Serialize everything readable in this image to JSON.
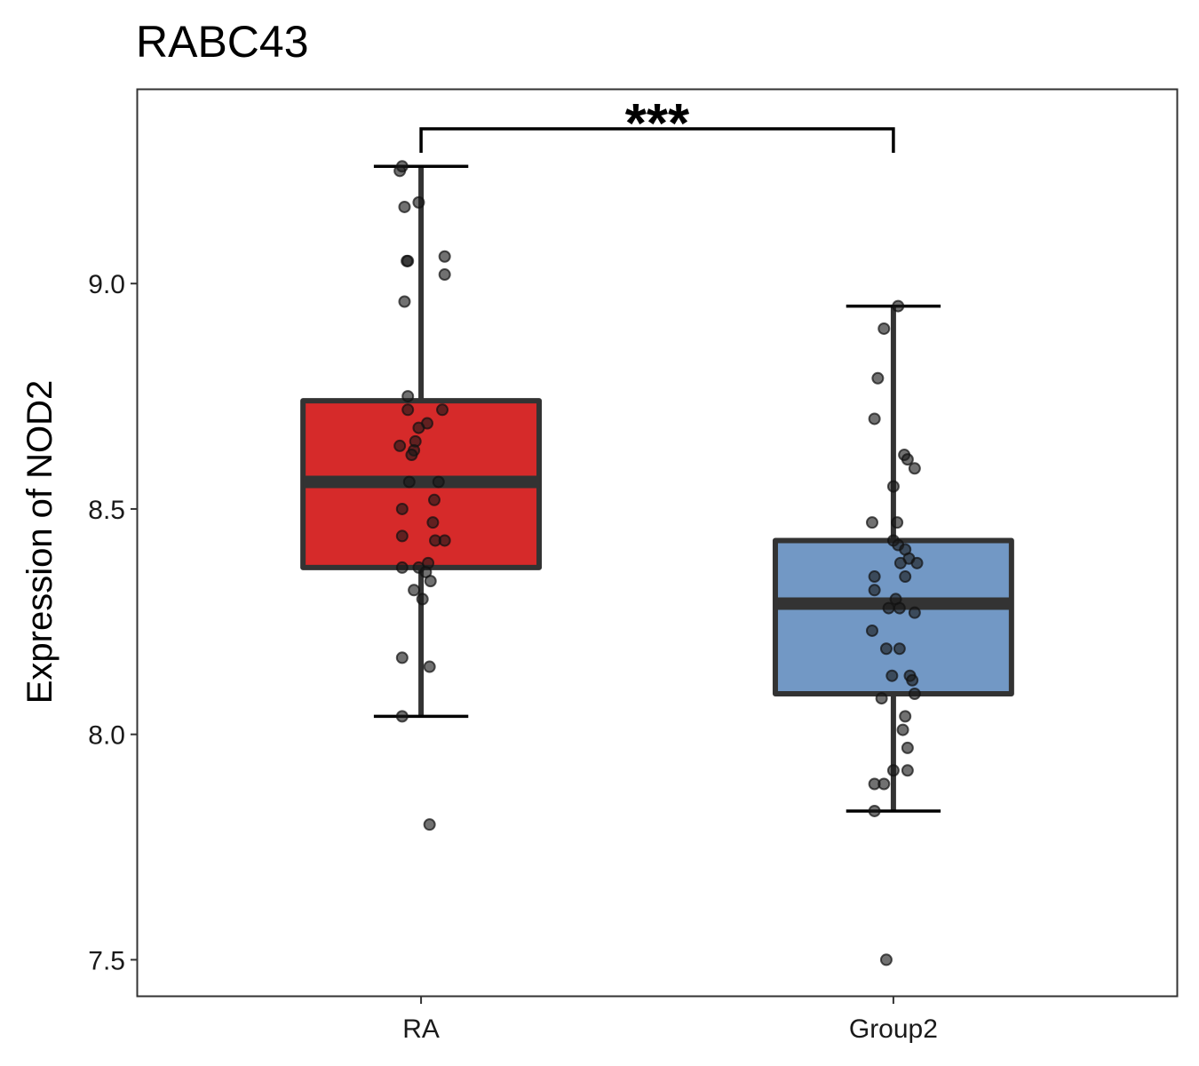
{
  "chart_data": {
    "type": "box",
    "title": "RABC43",
    "xlabel": "",
    "ylabel": "Expression of NOD2",
    "ylim": [
      7.42,
      9.43
    ],
    "yticks": [
      7.5,
      8.0,
      8.5,
      9.0
    ],
    "ytick_labels": [
      "7.5",
      "8.0",
      "8.5",
      "9.0"
    ],
    "categories": [
      "RA",
      "Group2"
    ],
    "grid": false,
    "colors": {
      "RA": "#D62A2A",
      "Group2": "#7298C5",
      "outline": "#333333",
      "points": "#1a1a1a"
    },
    "significance": {
      "label": "***",
      "between": [
        "RA",
        "Group2"
      ]
    },
    "boxes": [
      {
        "name": "RA",
        "whisker_low": 8.04,
        "q1": 8.37,
        "median": 8.56,
        "q3": 8.74,
        "whisker_high": 9.26,
        "points": [
          {
            "x": -0.04,
            "y": 9.26
          },
          {
            "x": -0.045,
            "y": 9.25
          },
          {
            "x": -0.035,
            "y": 9.17
          },
          {
            "x": -0.005,
            "y": 9.18
          },
          {
            "x": -0.03,
            "y": 9.05
          },
          {
            "x": -0.028,
            "y": 9.05
          },
          {
            "x": 0.05,
            "y": 9.06
          },
          {
            "x": 0.05,
            "y": 9.02
          },
          {
            "x": -0.035,
            "y": 8.96
          },
          {
            "x": -0.028,
            "y": 8.75
          },
          {
            "x": -0.028,
            "y": 8.72
          },
          {
            "x": 0.045,
            "y": 8.72
          },
          {
            "x": 0.013,
            "y": 8.69
          },
          {
            "x": -0.005,
            "y": 8.68
          },
          {
            "x": -0.012,
            "y": 8.65
          },
          {
            "x": -0.045,
            "y": 8.64
          },
          {
            "x": -0.015,
            "y": 8.63
          },
          {
            "x": -0.02,
            "y": 8.62
          },
          {
            "x": -0.025,
            "y": 8.56
          },
          {
            "x": 0.037,
            "y": 8.56
          },
          {
            "x": 0.028,
            "y": 8.52
          },
          {
            "x": -0.04,
            "y": 8.5
          },
          {
            "x": 0.025,
            "y": 8.47
          },
          {
            "x": -0.04,
            "y": 8.44
          },
          {
            "x": 0.03,
            "y": 8.43
          },
          {
            "x": 0.05,
            "y": 8.43
          },
          {
            "x": -0.04,
            "y": 8.37
          },
          {
            "x": -0.005,
            "y": 8.37
          },
          {
            "x": 0.015,
            "y": 8.38
          },
          {
            "x": 0.01,
            "y": 8.36
          },
          {
            "x": 0.02,
            "y": 8.34
          },
          {
            "x": -0.015,
            "y": 8.32
          },
          {
            "x": 0.003,
            "y": 8.3
          },
          {
            "x": -0.04,
            "y": 8.17
          },
          {
            "x": 0.018,
            "y": 8.15
          },
          {
            "x": -0.04,
            "y": 8.04
          },
          {
            "x": 0.018,
            "y": 7.8
          }
        ]
      },
      {
        "name": "Group2",
        "whisker_low": 7.83,
        "q1": 8.09,
        "median": 8.29,
        "q3": 8.43,
        "whisker_high": 8.95,
        "points": [
          {
            "x": 0.01,
            "y": 8.95
          },
          {
            "x": -0.02,
            "y": 8.9
          },
          {
            "x": -0.033,
            "y": 8.79
          },
          {
            "x": -0.04,
            "y": 8.7
          },
          {
            "x": 0.023,
            "y": 8.62
          },
          {
            "x": 0.03,
            "y": 8.61
          },
          {
            "x": 0.045,
            "y": 8.59
          },
          {
            "x": 0.0,
            "y": 8.55
          },
          {
            "x": -0.045,
            "y": 8.47
          },
          {
            "x": 0.008,
            "y": 8.47
          },
          {
            "x": 0.0,
            "y": 8.43
          },
          {
            "x": 0.01,
            "y": 8.42
          },
          {
            "x": 0.025,
            "y": 8.41
          },
          {
            "x": 0.033,
            "y": 8.39
          },
          {
            "x": 0.05,
            "y": 8.38
          },
          {
            "x": 0.015,
            "y": 8.38
          },
          {
            "x": -0.04,
            "y": 8.35
          },
          {
            "x": 0.025,
            "y": 8.35
          },
          {
            "x": -0.04,
            "y": 8.32
          },
          {
            "x": 0.005,
            "y": 8.3
          },
          {
            "x": -0.01,
            "y": 8.28
          },
          {
            "x": 0.013,
            "y": 8.28
          },
          {
            "x": 0.045,
            "y": 8.27
          },
          {
            "x": -0.045,
            "y": 8.23
          },
          {
            "x": -0.015,
            "y": 8.19
          },
          {
            "x": 0.013,
            "y": 8.19
          },
          {
            "x": -0.003,
            "y": 8.13
          },
          {
            "x": 0.035,
            "y": 8.13
          },
          {
            "x": 0.04,
            "y": 8.12
          },
          {
            "x": 0.045,
            "y": 8.09
          },
          {
            "x": -0.025,
            "y": 8.08
          },
          {
            "x": 0.025,
            "y": 8.04
          },
          {
            "x": 0.02,
            "y": 8.01
          },
          {
            "x": 0.03,
            "y": 7.97
          },
          {
            "x": 0.0,
            "y": 7.92
          },
          {
            "x": 0.03,
            "y": 7.92
          },
          {
            "x": -0.04,
            "y": 7.89
          },
          {
            "x": -0.02,
            "y": 7.89
          },
          {
            "x": -0.04,
            "y": 7.83
          },
          {
            "x": -0.015,
            "y": 7.5
          }
        ]
      }
    ]
  }
}
